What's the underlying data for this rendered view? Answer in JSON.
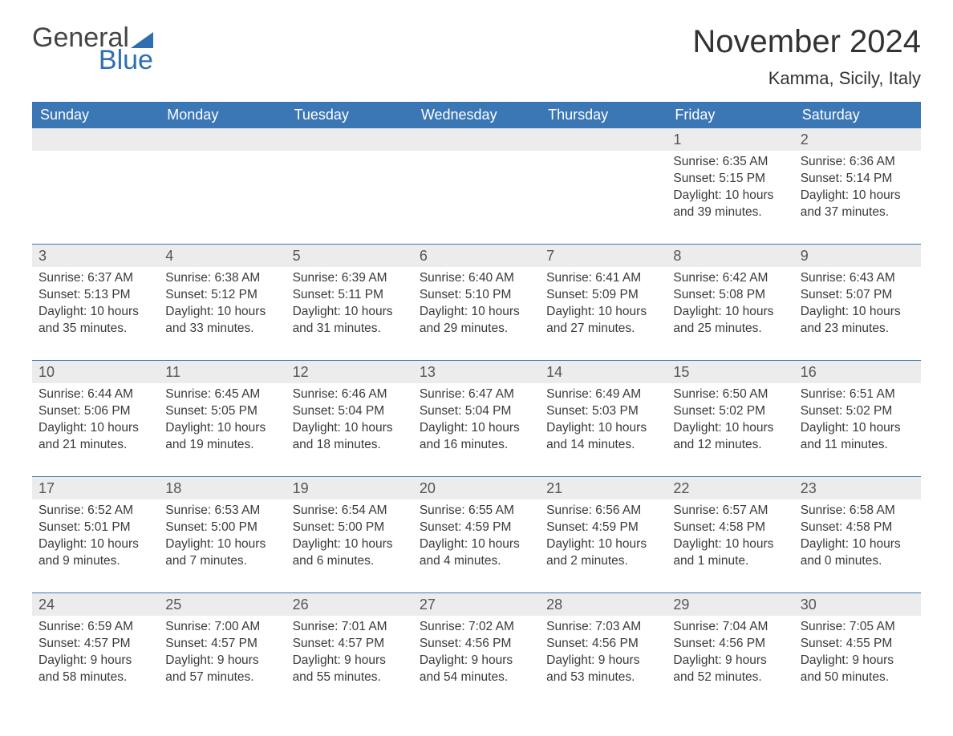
{
  "logo": {
    "word1": "General",
    "word2": "Blue"
  },
  "title": "November 2024",
  "location": "Kamma, Sicily, Italy",
  "accent_color": "#3b76b5",
  "text_color": "#3a3a3a",
  "bg_color": "#ffffff",
  "row_bg": "#ececec",
  "day_names": [
    "Sunday",
    "Monday",
    "Tuesday",
    "Wednesday",
    "Thursday",
    "Friday",
    "Saturday"
  ],
  "weeks": [
    [
      null,
      null,
      null,
      null,
      null,
      {
        "n": "1",
        "sunrise": "Sunrise: 6:35 AM",
        "sunset": "Sunset: 5:15 PM",
        "d1": "Daylight: 10 hours",
        "d2": "and 39 minutes."
      },
      {
        "n": "2",
        "sunrise": "Sunrise: 6:36 AM",
        "sunset": "Sunset: 5:14 PM",
        "d1": "Daylight: 10 hours",
        "d2": "and 37 minutes."
      }
    ],
    [
      {
        "n": "3",
        "sunrise": "Sunrise: 6:37 AM",
        "sunset": "Sunset: 5:13 PM",
        "d1": "Daylight: 10 hours",
        "d2": "and 35 minutes."
      },
      {
        "n": "4",
        "sunrise": "Sunrise: 6:38 AM",
        "sunset": "Sunset: 5:12 PM",
        "d1": "Daylight: 10 hours",
        "d2": "and 33 minutes."
      },
      {
        "n": "5",
        "sunrise": "Sunrise: 6:39 AM",
        "sunset": "Sunset: 5:11 PM",
        "d1": "Daylight: 10 hours",
        "d2": "and 31 minutes."
      },
      {
        "n": "6",
        "sunrise": "Sunrise: 6:40 AM",
        "sunset": "Sunset: 5:10 PM",
        "d1": "Daylight: 10 hours",
        "d2": "and 29 minutes."
      },
      {
        "n": "7",
        "sunrise": "Sunrise: 6:41 AM",
        "sunset": "Sunset: 5:09 PM",
        "d1": "Daylight: 10 hours",
        "d2": "and 27 minutes."
      },
      {
        "n": "8",
        "sunrise": "Sunrise: 6:42 AM",
        "sunset": "Sunset: 5:08 PM",
        "d1": "Daylight: 10 hours",
        "d2": "and 25 minutes."
      },
      {
        "n": "9",
        "sunrise": "Sunrise: 6:43 AM",
        "sunset": "Sunset: 5:07 PM",
        "d1": "Daylight: 10 hours",
        "d2": "and 23 minutes."
      }
    ],
    [
      {
        "n": "10",
        "sunrise": "Sunrise: 6:44 AM",
        "sunset": "Sunset: 5:06 PM",
        "d1": "Daylight: 10 hours",
        "d2": "and 21 minutes."
      },
      {
        "n": "11",
        "sunrise": "Sunrise: 6:45 AM",
        "sunset": "Sunset: 5:05 PM",
        "d1": "Daylight: 10 hours",
        "d2": "and 19 minutes."
      },
      {
        "n": "12",
        "sunrise": "Sunrise: 6:46 AM",
        "sunset": "Sunset: 5:04 PM",
        "d1": "Daylight: 10 hours",
        "d2": "and 18 minutes."
      },
      {
        "n": "13",
        "sunrise": "Sunrise: 6:47 AM",
        "sunset": "Sunset: 5:04 PM",
        "d1": "Daylight: 10 hours",
        "d2": "and 16 minutes."
      },
      {
        "n": "14",
        "sunrise": "Sunrise: 6:49 AM",
        "sunset": "Sunset: 5:03 PM",
        "d1": "Daylight: 10 hours",
        "d2": "and 14 minutes."
      },
      {
        "n": "15",
        "sunrise": "Sunrise: 6:50 AM",
        "sunset": "Sunset: 5:02 PM",
        "d1": "Daylight: 10 hours",
        "d2": "and 12 minutes."
      },
      {
        "n": "16",
        "sunrise": "Sunrise: 6:51 AM",
        "sunset": "Sunset: 5:02 PM",
        "d1": "Daylight: 10 hours",
        "d2": "and 11 minutes."
      }
    ],
    [
      {
        "n": "17",
        "sunrise": "Sunrise: 6:52 AM",
        "sunset": "Sunset: 5:01 PM",
        "d1": "Daylight: 10 hours",
        "d2": "and 9 minutes."
      },
      {
        "n": "18",
        "sunrise": "Sunrise: 6:53 AM",
        "sunset": "Sunset: 5:00 PM",
        "d1": "Daylight: 10 hours",
        "d2": "and 7 minutes."
      },
      {
        "n": "19",
        "sunrise": "Sunrise: 6:54 AM",
        "sunset": "Sunset: 5:00 PM",
        "d1": "Daylight: 10 hours",
        "d2": "and 6 minutes."
      },
      {
        "n": "20",
        "sunrise": "Sunrise: 6:55 AM",
        "sunset": "Sunset: 4:59 PM",
        "d1": "Daylight: 10 hours",
        "d2": "and 4 minutes."
      },
      {
        "n": "21",
        "sunrise": "Sunrise: 6:56 AM",
        "sunset": "Sunset: 4:59 PM",
        "d1": "Daylight: 10 hours",
        "d2": "and 2 minutes."
      },
      {
        "n": "22",
        "sunrise": "Sunrise: 6:57 AM",
        "sunset": "Sunset: 4:58 PM",
        "d1": "Daylight: 10 hours",
        "d2": "and 1 minute."
      },
      {
        "n": "23",
        "sunrise": "Sunrise: 6:58 AM",
        "sunset": "Sunset: 4:58 PM",
        "d1": "Daylight: 10 hours",
        "d2": "and 0 minutes."
      }
    ],
    [
      {
        "n": "24",
        "sunrise": "Sunrise: 6:59 AM",
        "sunset": "Sunset: 4:57 PM",
        "d1": "Daylight: 9 hours",
        "d2": "and 58 minutes."
      },
      {
        "n": "25",
        "sunrise": "Sunrise: 7:00 AM",
        "sunset": "Sunset: 4:57 PM",
        "d1": "Daylight: 9 hours",
        "d2": "and 57 minutes."
      },
      {
        "n": "26",
        "sunrise": "Sunrise: 7:01 AM",
        "sunset": "Sunset: 4:57 PM",
        "d1": "Daylight: 9 hours",
        "d2": "and 55 minutes."
      },
      {
        "n": "27",
        "sunrise": "Sunrise: 7:02 AM",
        "sunset": "Sunset: 4:56 PM",
        "d1": "Daylight: 9 hours",
        "d2": "and 54 minutes."
      },
      {
        "n": "28",
        "sunrise": "Sunrise: 7:03 AM",
        "sunset": "Sunset: 4:56 PM",
        "d1": "Daylight: 9 hours",
        "d2": "and 53 minutes."
      },
      {
        "n": "29",
        "sunrise": "Sunrise: 7:04 AM",
        "sunset": "Sunset: 4:56 PM",
        "d1": "Daylight: 9 hours",
        "d2": "and 52 minutes."
      },
      {
        "n": "30",
        "sunrise": "Sunrise: 7:05 AM",
        "sunset": "Sunset: 4:55 PM",
        "d1": "Daylight: 9 hours",
        "d2": "and 50 minutes."
      }
    ]
  ]
}
